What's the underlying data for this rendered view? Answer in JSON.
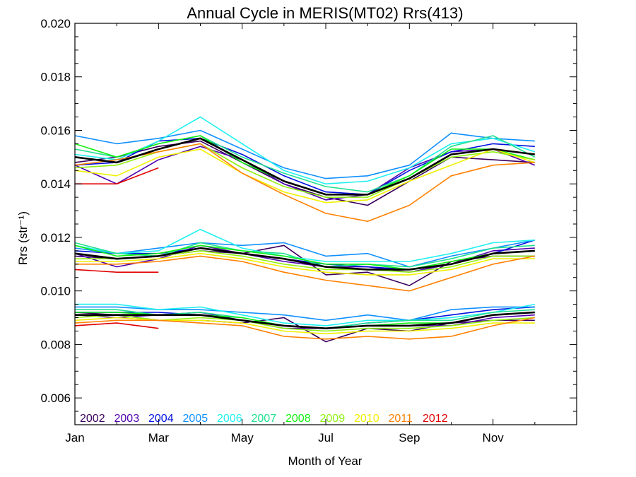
{
  "chart_data": {
    "type": "line",
    "title": "Annual Cycle in MERIS(MT02) Rrs(413)",
    "xlabel": "Month of Year",
    "ylabel": "Rrs (str⁻¹)",
    "xlim": [
      1,
      13
    ],
    "ylim": [
      0.005,
      0.02
    ],
    "xticks": [
      {
        "value": 1,
        "label": "Jan"
      },
      {
        "value": 3,
        "label": "Mar"
      },
      {
        "value": 5,
        "label": "May"
      },
      {
        "value": 7,
        "label": "Jul"
      },
      {
        "value": 9,
        "label": "Sep"
      },
      {
        "value": 11,
        "label": "Nov"
      }
    ],
    "yticks": [
      {
        "value": 0.006,
        "label": "0.006"
      },
      {
        "value": 0.008,
        "label": "0.008"
      },
      {
        "value": 0.01,
        "label": "0.010"
      },
      {
        "value": 0.012,
        "label": "0.012"
      },
      {
        "value": 0.014,
        "label": "0.014"
      },
      {
        "value": 0.016,
        "label": "0.016"
      },
      {
        "value": 0.018,
        "label": "0.018"
      },
      {
        "value": 0.02,
        "label": "0.020"
      }
    ],
    "legend_placement": "bottom-left",
    "x": [
      1,
      2,
      3,
      4,
      5,
      6,
      7,
      8,
      9,
      10,
      11,
      12
    ],
    "series": [
      {
        "name": "2002",
        "color": "#3a0060",
        "groups": [
          [
            0.0148,
            0.015,
            0.0154,
            0.0156,
            0.0148,
            0.014,
            0.0135,
            0.0132,
            0.0141,
            0.015,
            0.0149,
            0.0148
          ],
          [
            0.0113,
            0.0112,
            0.0113,
            0.0115,
            0.0114,
            0.0117,
            0.0106,
            0.0107,
            0.0102,
            0.0111,
            0.0113,
            0.0113
          ],
          [
            0.0092,
            0.0091,
            0.0089,
            0.0089,
            0.0088,
            0.009,
            0.0081,
            0.0086,
            0.0085,
            0.0088,
            0.0089,
            0.0089
          ]
        ]
      },
      {
        "name": "2003",
        "color": "#5000b0",
        "groups": [
          [
            0.0147,
            0.014,
            0.0149,
            0.0154,
            0.0149,
            0.014,
            0.0134,
            0.0136,
            0.0146,
            0.0152,
            0.0153,
            0.0147
          ],
          [
            0.0114,
            0.0109,
            0.0112,
            0.0117,
            0.0114,
            0.0111,
            0.0109,
            0.0109,
            0.0107,
            0.011,
            0.0115,
            0.0116
          ],
          [
            0.0091,
            0.009,
            0.0091,
            0.0092,
            0.0089,
            0.0086,
            0.0086,
            0.0087,
            0.0087,
            0.0087,
            0.009,
            0.0091
          ]
        ]
      },
      {
        "name": "2004",
        "color": "#0010e0",
        "groups": [
          [
            0.0147,
            0.0148,
            0.0156,
            0.0157,
            0.0151,
            0.0143,
            0.0137,
            0.0136,
            0.0145,
            0.0152,
            0.0155,
            0.0154
          ],
          [
            0.0115,
            0.0114,
            0.0114,
            0.0116,
            0.0114,
            0.0112,
            0.011,
            0.0109,
            0.0108,
            0.011,
            0.0114,
            0.0119
          ],
          [
            0.0092,
            0.0092,
            0.0092,
            0.0091,
            0.0089,
            0.0087,
            0.0086,
            0.0088,
            0.0089,
            0.0091,
            0.0093,
            0.0094
          ]
        ]
      },
      {
        "name": "2005",
        "color": "#1090ff",
        "groups": [
          [
            0.0158,
            0.0155,
            0.0157,
            0.016,
            0.0153,
            0.0146,
            0.0142,
            0.0143,
            0.0147,
            0.0159,
            0.0157,
            0.0156
          ],
          [
            0.0116,
            0.0114,
            0.0116,
            0.0118,
            0.0117,
            0.0118,
            0.0113,
            0.0114,
            0.0109,
            0.0113,
            0.0116,
            0.0119
          ],
          [
            0.0094,
            0.0094,
            0.0093,
            0.0093,
            0.0092,
            0.0091,
            0.0089,
            0.0091,
            0.0089,
            0.0093,
            0.0094,
            0.0094
          ]
        ]
      },
      {
        "name": "2006",
        "color": "#20f0f0",
        "groups": [
          [
            0.0151,
            0.0149,
            0.0156,
            0.0165,
            0.0155,
            0.0145,
            0.014,
            0.0141,
            0.0146,
            0.0155,
            0.0157,
            0.0152
          ],
          [
            0.0117,
            0.0114,
            0.0115,
            0.0123,
            0.0116,
            0.0113,
            0.0111,
            0.0111,
            0.0111,
            0.0114,
            0.0118,
            0.0119
          ],
          [
            0.0095,
            0.0095,
            0.0093,
            0.0094,
            0.0091,
            0.0088,
            0.0087,
            0.0089,
            0.0089,
            0.009,
            0.0092,
            0.0095
          ]
        ]
      },
      {
        "name": "2007",
        "color": "#20e090",
        "groups": [
          [
            0.0153,
            0.015,
            0.0155,
            0.0158,
            0.015,
            0.0144,
            0.0139,
            0.0137,
            0.0143,
            0.0154,
            0.0158,
            0.015
          ],
          [
            0.0118,
            0.0114,
            0.0113,
            0.0118,
            0.0115,
            0.0114,
            0.0109,
            0.011,
            0.0109,
            0.0112,
            0.0116,
            0.0117
          ],
          [
            0.0093,
            0.0093,
            0.0091,
            0.0092,
            0.009,
            0.0087,
            0.0086,
            0.0088,
            0.0089,
            0.0089,
            0.0092,
            0.0093
          ]
        ]
      },
      {
        "name": "2008",
        "color": "#10f010",
        "groups": [
          [
            0.0155,
            0.015,
            0.0155,
            0.0158,
            0.0148,
            0.0141,
            0.0136,
            0.0136,
            0.0143,
            0.0153,
            0.0153,
            0.0149
          ],
          [
            0.0117,
            0.0113,
            0.0114,
            0.0117,
            0.0115,
            0.0113,
            0.011,
            0.011,
            0.0108,
            0.0111,
            0.0114,
            0.0115
          ],
          [
            0.0092,
            0.0092,
            0.0091,
            0.0091,
            0.009,
            0.0087,
            0.0086,
            0.0087,
            0.0088,
            0.0088,
            0.0091,
            0.0092
          ]
        ]
      },
      {
        "name": "2009",
        "color": "#90f010",
        "groups": [
          [
            0.0146,
            0.0147,
            0.0152,
            0.0155,
            0.0146,
            0.0139,
            0.0135,
            0.0135,
            0.0142,
            0.015,
            0.0152,
            0.0149
          ],
          [
            0.0112,
            0.0112,
            0.0113,
            0.0115,
            0.0113,
            0.011,
            0.0108,
            0.0108,
            0.0107,
            0.0109,
            0.0113,
            0.0113
          ],
          [
            0.009,
            0.0091,
            0.0089,
            0.009,
            0.0089,
            0.0086,
            0.0085,
            0.0086,
            0.0086,
            0.0087,
            0.0089,
            0.009
          ]
        ]
      },
      {
        "name": "2010",
        "color": "#f0f000",
        "groups": [
          [
            0.0145,
            0.0143,
            0.015,
            0.0153,
            0.0144,
            0.0137,
            0.0133,
            0.0134,
            0.0141,
            0.0147,
            0.0153,
            0.0148
          ],
          [
            0.0111,
            0.0111,
            0.0112,
            0.0114,
            0.0112,
            0.0109,
            0.0107,
            0.0106,
            0.0106,
            0.0108,
            0.0112,
            0.0112
          ],
          [
            0.0089,
            0.009,
            0.0089,
            0.0089,
            0.0088,
            0.0085,
            0.0084,
            0.0085,
            0.0085,
            0.0086,
            0.0088,
            0.0088
          ]
        ]
      },
      {
        "name": "2011",
        "color": "#ff8000",
        "groups": [
          [
            0.0147,
            0.0149,
            0.0152,
            0.0155,
            0.0144,
            0.0136,
            0.0129,
            0.0126,
            0.0132,
            0.0143,
            0.0147,
            0.0148
          ],
          [
            0.011,
            0.011,
            0.0111,
            0.0113,
            0.0111,
            0.0107,
            0.0104,
            0.0102,
            0.01,
            0.0105,
            0.011,
            0.0113
          ],
          [
            0.0088,
            0.0089,
            0.0089,
            0.0088,
            0.0087,
            0.0083,
            0.0082,
            0.0083,
            0.0082,
            0.0083,
            0.0087,
            0.009
          ]
        ]
      },
      {
        "name": "2012",
        "color": "#e00000",
        "groups": [
          [
            0.014,
            0.014,
            0.0146
          ],
          [
            0.0108,
            0.0107,
            0.0107
          ],
          [
            0.0087,
            0.0088,
            0.0086
          ]
        ]
      }
    ],
    "mean_series": {
      "color": "#000000",
      "groups": [
        [
          0.015,
          0.0148,
          0.0153,
          0.0157,
          0.0149,
          0.0141,
          0.0136,
          0.0136,
          0.0142,
          0.0151,
          0.0153,
          0.0151
        ],
        [
          0.0114,
          0.0112,
          0.0113,
          0.0116,
          0.0114,
          0.0112,
          0.0109,
          0.0108,
          0.0108,
          0.011,
          0.0114,
          0.0115
        ],
        [
          0.0091,
          0.0091,
          0.0091,
          0.0091,
          0.0089,
          0.0087,
          0.0086,
          0.0087,
          0.0087,
          0.0088,
          0.0091,
          0.0092
        ]
      ]
    }
  }
}
